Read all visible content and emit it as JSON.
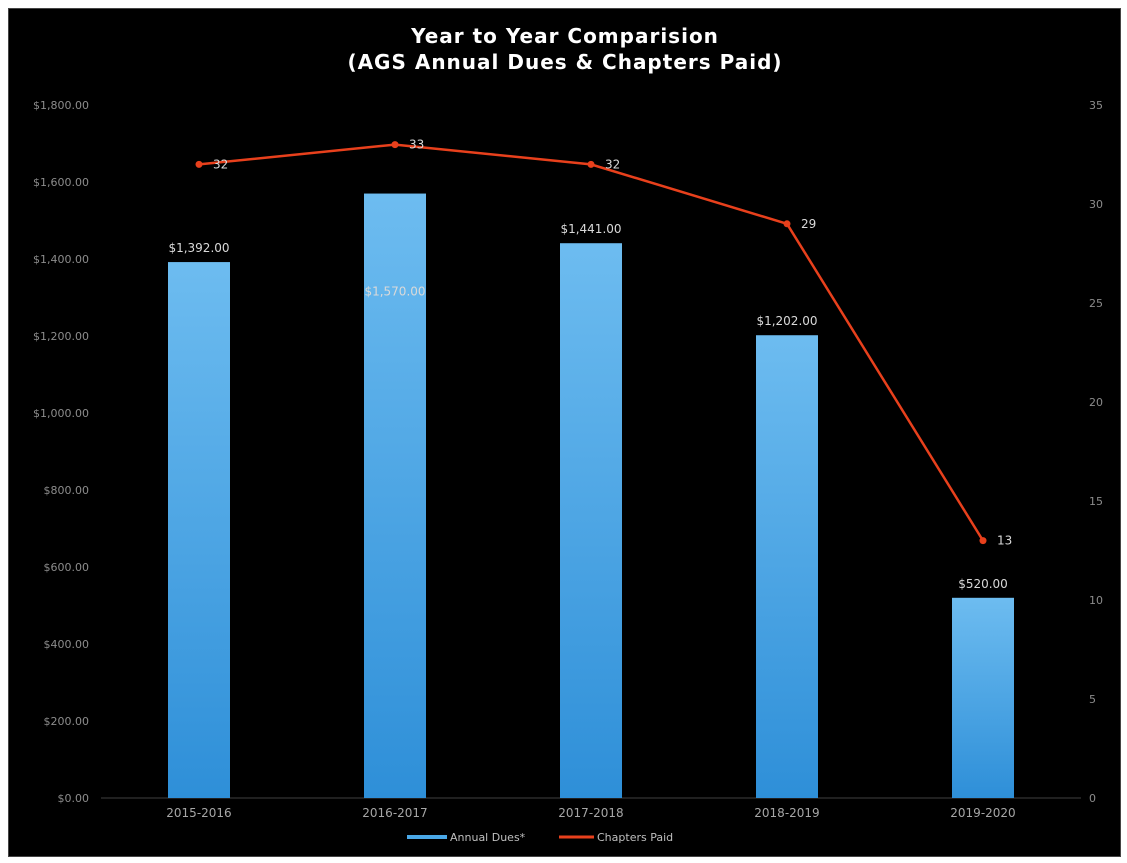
{
  "chart_data": {
    "type": "bar",
    "title_line1": "Year to Year Comparision",
    "title_line2": "(AGS Annual Dues & Chapters Paid)",
    "categories": [
      "2015-2016",
      "2016-2017",
      "2017-2018",
      "2018-2019",
      "2019-2020"
    ],
    "series": [
      {
        "name": "Annual Dues*",
        "type": "bar",
        "axis": "left",
        "color": "#4aa8e8",
        "values": [
          1392,
          1570,
          1441,
          1202,
          520
        ],
        "labels": [
          "$1,392.00",
          "$1,570.00",
          "$1,441.00",
          "$1,202.00",
          "$520.00"
        ]
      },
      {
        "name": "Chapters Paid",
        "type": "line",
        "axis": "right",
        "color": "#e8401c",
        "values": [
          32,
          33,
          32,
          29,
          13
        ],
        "labels": [
          "32",
          "33",
          "32",
          "29",
          "13"
        ]
      }
    ],
    "y_left": {
      "ylim": [
        0,
        1800
      ],
      "ticks": [
        0,
        200,
        400,
        600,
        800,
        1000,
        1200,
        1400,
        1600,
        1800
      ],
      "tick_labels": [
        "$0.00",
        "$200.00",
        "$400.00",
        "$600.00",
        "$800.00",
        "$1,000.00",
        "$1,200.00",
        "$1,400.00",
        "$1,600.00",
        "$1,800.00"
      ]
    },
    "y_right": {
      "ylim": [
        0,
        35
      ],
      "ticks": [
        0,
        5,
        10,
        15,
        20,
        25,
        30,
        35
      ],
      "tick_labels": [
        "0",
        "5",
        "10",
        "15",
        "20",
        "25",
        "30",
        "35"
      ]
    },
    "grid": false,
    "legend_position": "bottom-center"
  }
}
